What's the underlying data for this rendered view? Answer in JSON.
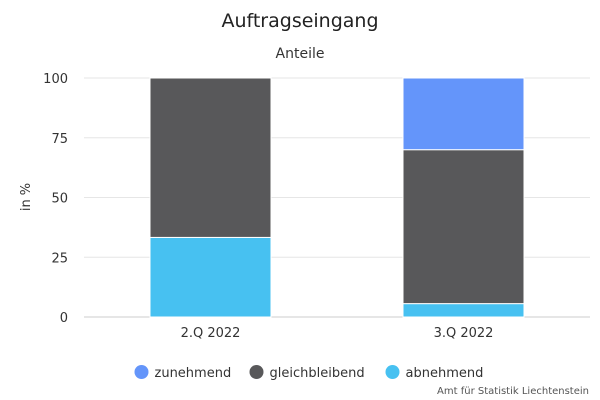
{
  "chart_data": {
    "type": "bar",
    "stacked": true,
    "title": "Auftragseingang",
    "subtitle": "Anteile",
    "xlabel": "",
    "ylabel": "in %",
    "ylim": [
      0,
      100
    ],
    "yticks": [
      0,
      25,
      50,
      75,
      100
    ],
    "categories": [
      "2.Q 2022",
      "3.Q 2022"
    ],
    "series": [
      {
        "name": "abnehmend",
        "color": "#47c1f1",
        "values": [
          33.3,
          5.6
        ]
      },
      {
        "name": "gleichbleibend",
        "color": "#58585a",
        "values": [
          66.7,
          64.4
        ]
      },
      {
        "name": "zunehmend",
        "color": "#6495fa",
        "values": [
          0,
          30.0
        ]
      }
    ],
    "legend_order": [
      "zunehmend",
      "gleichbleibend",
      "abnehmend"
    ],
    "legend_position": "bottom-center",
    "grid": true
  },
  "credit": "Amt für Statistik Liechtenstein"
}
